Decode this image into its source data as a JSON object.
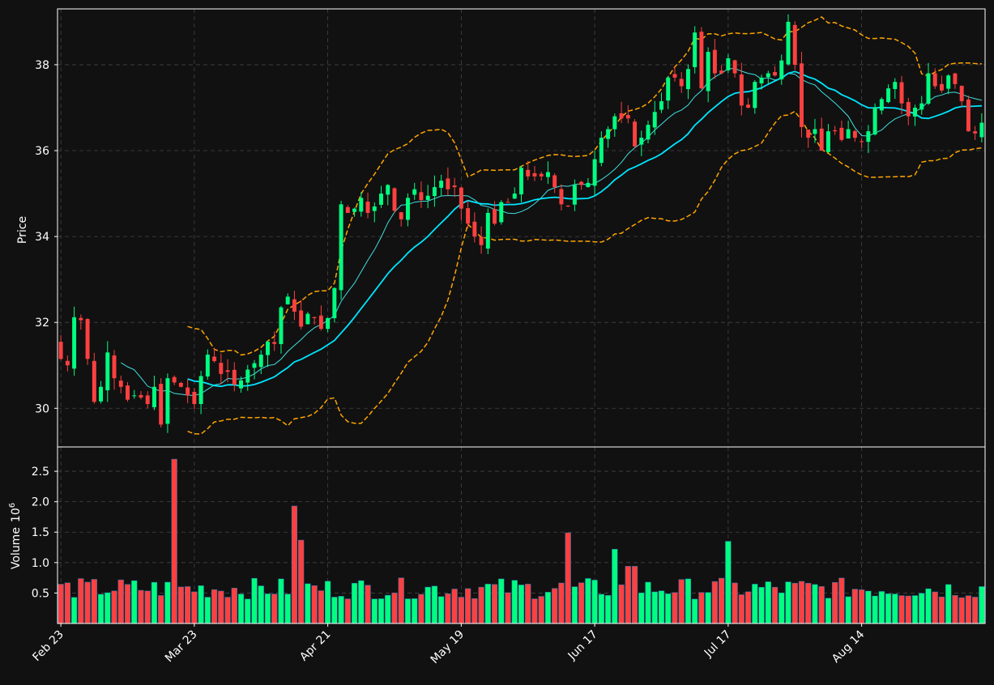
{
  "chart_data": {
    "type": "candlestick",
    "ylabel_price": "Price",
    "ylabel_volume": "Volume",
    "volume_exponent_label": "10",
    "volume_exponent_power": "6",
    "price_ylim": [
      29.1,
      39.3
    ],
    "price_yticks": [
      30,
      32,
      34,
      36,
      38
    ],
    "volume_ylim": [
      0,
      2.9
    ],
    "volume_yticks": [
      "0.5",
      "1.0",
      "1.5",
      "2.0",
      "2.5"
    ],
    "xtick_labels": [
      "Feb 23",
      "Mar 23",
      "Apr 21",
      "May 19",
      "Jun 17",
      "Jul 17",
      "Aug 14"
    ],
    "xtick_index": [
      0,
      20,
      40,
      60,
      80,
      100,
      120
    ],
    "grid": true,
    "colors": {
      "background": "#111111",
      "up": "#00ff80",
      "down": "#ff4040",
      "ma_fast": "#40e0e0",
      "ma_slow": "#00e5ff",
      "bands": "#ffa500",
      "grid": "#444444",
      "text": "#ffffff",
      "frame": "#ffffff"
    },
    "close": [
      31.15,
      31.0,
      32.12,
      32.05,
      31.15,
      30.15,
      30.5,
      31.3,
      30.7,
      30.5,
      30.2,
      30.3,
      30.25,
      30.1,
      30.5,
      29.62,
      30.7,
      30.6,
      30.5,
      30.3,
      30.1,
      30.75,
      31.25,
      31.1,
      30.8,
      30.85,
      30.55,
      30.65,
      30.9,
      31.05,
      31.25,
      31.55,
      31.5,
      32.35,
      32.6,
      32.25,
      31.9,
      32.2,
      32.1,
      31.85,
      32.1,
      32.8,
      34.75,
      34.55,
      34.65,
      34.9,
      34.55,
      34.7,
      35.0,
      35.2,
      34.6,
      34.4,
      34.9,
      35.1,
      34.85,
      34.95,
      35.15,
      35.3,
      35.1,
      35.15,
      34.65,
      34.3,
      34.0,
      33.8,
      34.55,
      34.3,
      34.8,
      34.8,
      35.0,
      35.6,
      35.4,
      35.4,
      35.4,
      35.5,
      35.15,
      34.75,
      34.7,
      35.2,
      35.2,
      35.25,
      35.8,
      36.3,
      36.5,
      36.8,
      36.75,
      36.75,
      36.1,
      36.3,
      36.6,
      36.9,
      37.15,
      37.7,
      37.7,
      37.5,
      37.9,
      38.75,
      37.45,
      38.3,
      37.8,
      37.8,
      38.15,
      37.8,
      37.05,
      37.0,
      37.6,
      37.7,
      37.8,
      37.75,
      38.1,
      39.0,
      38.0,
      36.55,
      36.3,
      36.5,
      36.0,
      36.45,
      36.45,
      36.25,
      36.5,
      36.3,
      36.2,
      36.45,
      37.0,
      37.2,
      37.45,
      37.6,
      37.1,
      36.8,
      37.0,
      37.1,
      37.8,
      37.5,
      37.4,
      37.75,
      37.55,
      37.15,
      36.45,
      36.4,
      36.65
    ]
  }
}
